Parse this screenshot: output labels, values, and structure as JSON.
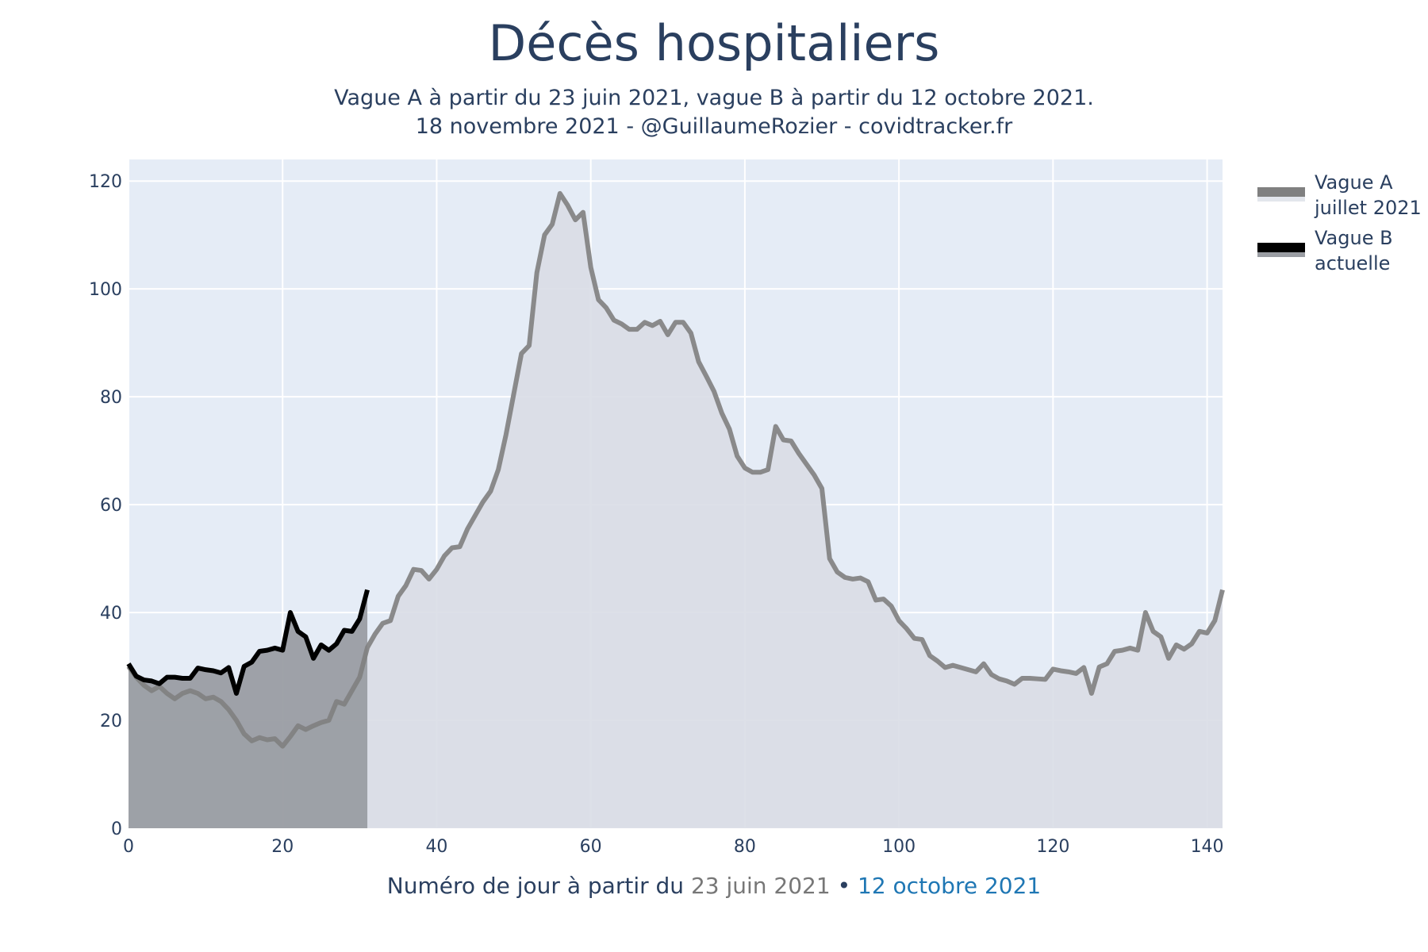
{
  "header": {
    "title": "Décès hospitaliers",
    "subtitle_line1": "Vague A à partir du 23 juin 2021, vague B à partir du 12 octobre 2021.",
    "subtitle_line2": "18 novembre 2021 - @GuillaumeRozier - covidtracker.fr"
  },
  "xaxis": {
    "label_prefix": "Numéro de jour à partir du",
    "label_a": "23 juin 2021",
    "label_sep": "•",
    "label_b": "12 octobre 2021"
  },
  "legend": {
    "a_line1": "Vague A",
    "a_line2": "juillet 2021",
    "b_line1": "Vague B",
    "b_line2": "actuelle"
  },
  "chart_data": {
    "type": "area",
    "title": "Décès hospitaliers",
    "xlabel": "Numéro de jour à partir du 23 juin 2021 • 12 octobre 2021",
    "ylabel": "",
    "xlim": [
      0,
      142
    ],
    "ylim": [
      0,
      124
    ],
    "xticks": [
      0,
      20,
      40,
      60,
      80,
      100,
      120,
      140
    ],
    "yticks": [
      0,
      20,
      40,
      60,
      80,
      100,
      120
    ],
    "grid": true,
    "legend_position": "top-right",
    "colors": {
      "plot_bg": "#e5ecf6",
      "grid": "#ffffff",
      "series_a": "#808080",
      "series_a_fill": "#d9dde6",
      "series_b": "#000000",
      "series_b_fill": "#9a9da3",
      "text": "#2a3f5f"
    },
    "series": [
      {
        "name": "Vague A juillet 2021",
        "x": [
          0,
          1,
          2,
          3,
          4,
          5,
          6,
          7,
          8,
          9,
          10,
          11,
          12,
          13,
          14,
          15,
          16,
          17,
          18,
          19,
          20,
          21,
          22,
          23,
          24,
          25,
          26,
          27,
          28,
          29,
          30,
          31,
          32,
          33,
          34,
          35,
          36,
          37,
          38,
          39,
          40,
          41,
          42,
          43,
          44,
          45,
          46,
          47,
          48,
          49,
          50,
          51,
          52,
          53,
          54,
          55,
          56,
          57,
          58,
          59,
          60,
          61,
          62,
          63,
          64,
          65,
          66,
          67,
          68,
          69,
          70,
          71,
          72,
          73,
          74,
          75,
          76,
          77,
          78,
          79,
          80,
          81,
          82,
          83,
          84,
          85,
          86,
          87,
          88,
          89,
          90,
          91,
          92,
          93,
          94,
          95,
          96,
          97,
          98,
          99,
          100,
          101,
          102,
          103,
          104,
          105,
          106,
          107,
          108,
          109,
          110,
          111,
          112,
          113,
          114,
          115,
          116,
          117,
          118,
          119,
          120,
          121,
          122,
          123,
          124,
          125,
          126,
          127,
          128,
          129,
          130,
          131,
          132,
          133,
          134,
          135,
          136,
          137,
          138,
          139,
          140,
          141,
          142
        ],
        "values": [
          30,
          28,
          26.5,
          25.5,
          26.3,
          25,
          24,
          25,
          25.5,
          25,
          24,
          24.3,
          23.5,
          22,
          20,
          17.5,
          16.2,
          16.8,
          16.4,
          16.6,
          15.2,
          17,
          19,
          18.3,
          19,
          19.6,
          20,
          23.5,
          23,
          25.5,
          28,
          33.5,
          36,
          38,
          38.5,
          43,
          45,
          48,
          47.8,
          46.2,
          48,
          50.5,
          52,
          52.2,
          55.5,
          58,
          60.5,
          62.5,
          66.5,
          73,
          80.5,
          88,
          89.5,
          103,
          110,
          112,
          117.7,
          115.5,
          112.8,
          114.2,
          104,
          98,
          96.5,
          94.2,
          93.5,
          92.5,
          92.5,
          93.8,
          93.2,
          94,
          91.5,
          93.8,
          93.8,
          91.8,
          86.5,
          83.8,
          81,
          77,
          74,
          69,
          66.8,
          66,
          66,
          66.5,
          74.5,
          72,
          71.8,
          69.5,
          67.5,
          65.5,
          63,
          50,
          47.5,
          46.5,
          46.2,
          46.4,
          45.7,
          42.3,
          42.5,
          41.2,
          38.5,
          37,
          35.2,
          35,
          32,
          31,
          29.8,
          30.2,
          29.8,
          29.4,
          29,
          30.5,
          28.5,
          27.7,
          27.3,
          26.7,
          27.8,
          27.8,
          27.7,
          27.6,
          29.5,
          29.2,
          29,
          28.7,
          29.8,
          25,
          29.9,
          30.5,
          32.8,
          33,
          33.4,
          33,
          40,
          36.5,
          35.5,
          31.5,
          34,
          33.2,
          34.2,
          36.5,
          36.2,
          38.5,
          44.2
        ]
      },
      {
        "name": "Vague B actuelle",
        "x": [
          0,
          1,
          2,
          3,
          4,
          5,
          6,
          7,
          8,
          9,
          10,
          11,
          12,
          13,
          14,
          15,
          16,
          17,
          18,
          19,
          20,
          21,
          22,
          23,
          24,
          25,
          26,
          27,
          28,
          29,
          30,
          31
        ],
        "values": [
          30.5,
          28.2,
          27.5,
          27.3,
          26.8,
          28,
          28,
          27.8,
          27.8,
          29.7,
          29.4,
          29.2,
          28.8,
          29.8,
          25,
          30,
          30.8,
          32.8,
          33,
          33.4,
          33,
          40,
          36.5,
          35.5,
          31.5,
          34,
          33,
          34.2,
          36.7,
          36.5,
          38.8,
          44.2
        ]
      }
    ]
  }
}
